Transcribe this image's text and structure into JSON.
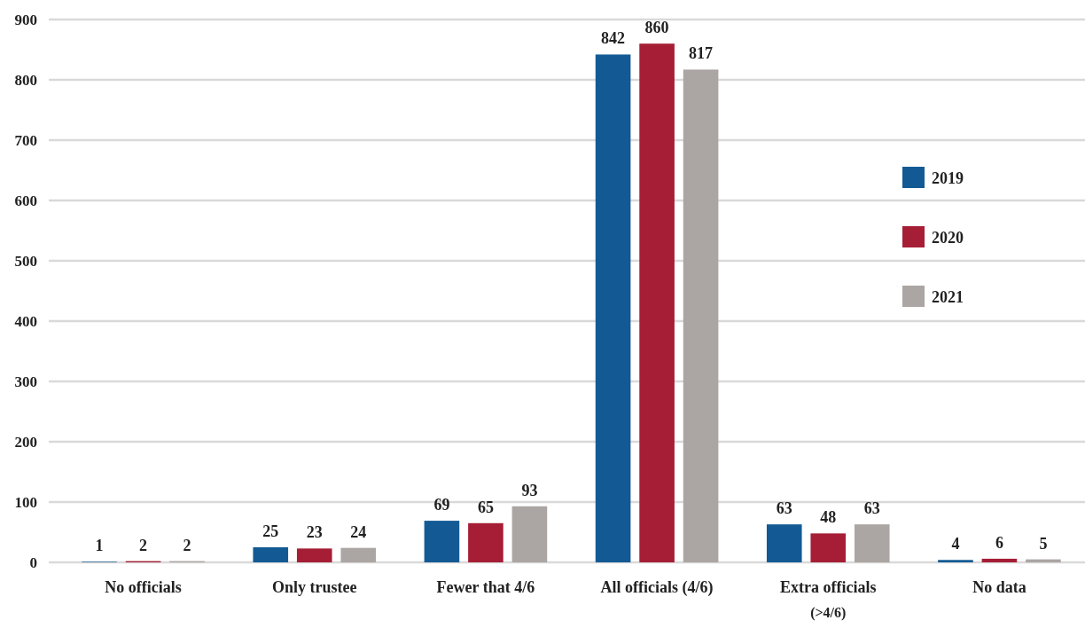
{
  "chart_data": {
    "type": "bar",
    "categories": [
      "No officials",
      "Only trustee",
      "Fewer that 4/6",
      "All officials (4/6)",
      "Extra officials (>4/6)",
      "No data"
    ],
    "series": [
      {
        "name": "2019",
        "color": "#135a94",
        "values": [
          1,
          25,
          69,
          842,
          63,
          4
        ]
      },
      {
        "name": "2020",
        "color": "#a61e36",
        "values": [
          2,
          23,
          65,
          860,
          48,
          6
        ]
      },
      {
        "name": "2021",
        "color": "#aba6a3",
        "values": [
          2,
          24,
          93,
          817,
          63,
          5
        ]
      }
    ],
    "ylim": [
      0,
      900
    ],
    "yticks": [
      0,
      100,
      200,
      300,
      400,
      500,
      600,
      700,
      800,
      900
    ],
    "grid": "y",
    "legend": "right",
    "data_labels": true
  }
}
